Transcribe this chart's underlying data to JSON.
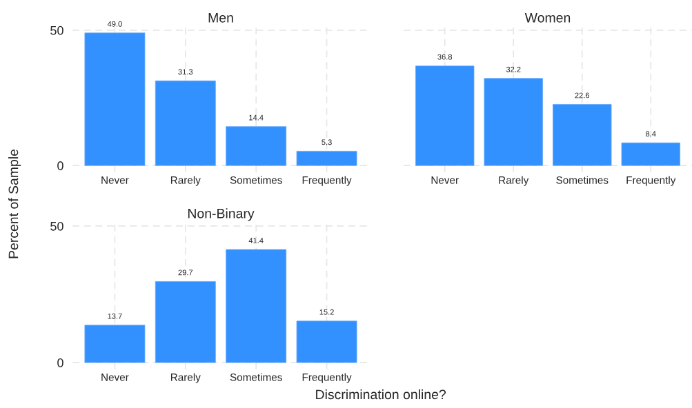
{
  "chart_data": [
    {
      "type": "bar",
      "title": "Men",
      "ylabel": "Percent of Sample",
      "categories": [
        "Never",
        "Rarely",
        "Sometimes",
        "Frequently"
      ],
      "values": [
        49.0,
        31.3,
        14.4,
        5.3
      ],
      "value_labels": [
        "49.0",
        "31.3",
        "14.4",
        "5.3"
      ],
      "color": "#3391ff",
      "ylim": [
        -2.5,
        51.5
      ],
      "yticks": [
        0,
        50
      ],
      "grid": true
    },
    {
      "type": "bar",
      "title": "Women",
      "categories": [
        "Never",
        "Rarely",
        "Sometimes",
        "Frequently"
      ],
      "values": [
        36.8,
        32.2,
        22.6,
        8.4
      ],
      "value_labels": [
        "36.8",
        "32.2",
        "22.6",
        "8.4"
      ],
      "color": "#3391ff",
      "ylim": [
        -2.5,
        51.5
      ],
      "yticks": [
        0,
        50
      ],
      "grid": true,
      "tick_labels": "x"
    },
    {
      "type": "bar",
      "title": "Non-Binary",
      "xlabel": "Discrimination online?",
      "categories": [
        "Never",
        "Rarely",
        "Sometimes",
        "Frequently"
      ],
      "values": [
        13.7,
        29.7,
        41.4,
        15.2
      ],
      "value_labels": [
        "13.7",
        "29.7",
        "41.4",
        "15.2"
      ],
      "color": "#3391ff",
      "ylim": [
        -2.5,
        51.5
      ],
      "yticks": [
        0,
        50
      ],
      "grid": true
    }
  ]
}
